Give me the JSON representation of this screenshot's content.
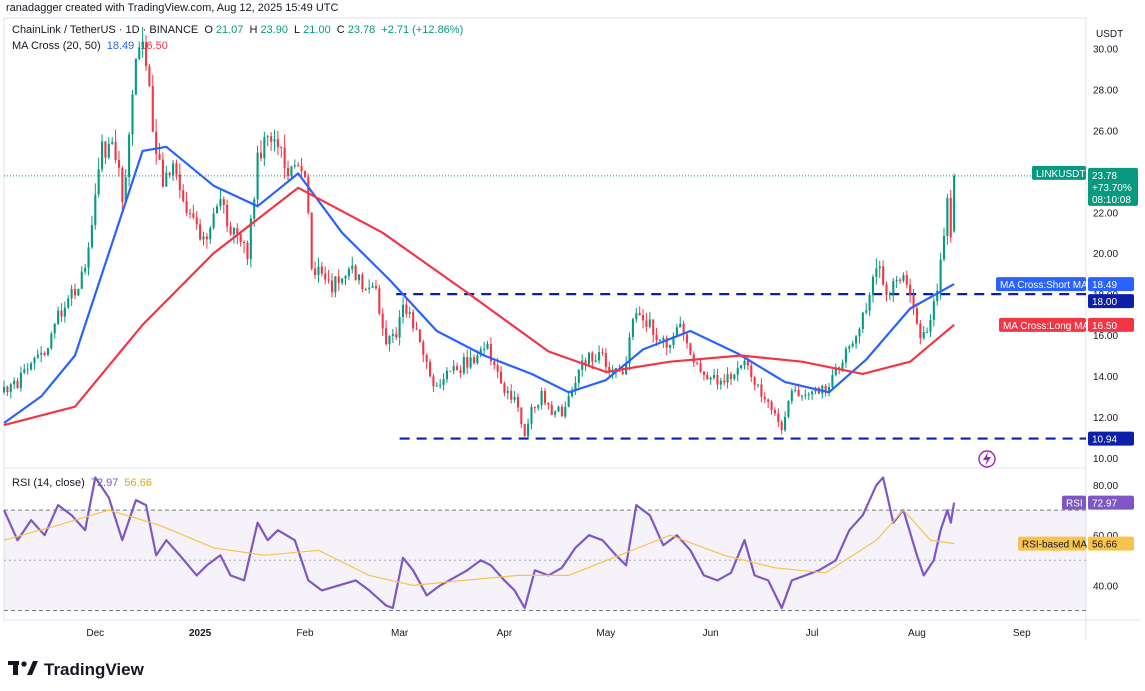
{
  "header": {
    "byline": "ranadagger created with TradingView.com, Aug 12, 2025 15:49 UTC",
    "symbol": "ChainLink / TetherUS · 1D · BINANCE",
    "ohlc": {
      "o_label": "O",
      "o": "21.07",
      "h_label": "H",
      "h": "23.90",
      "l_label": "L",
      "l": "21.00",
      "c_label": "C",
      "c": "23.78",
      "change": "+2.71 (+12.86%)"
    },
    "ma_legend": {
      "label": "MA Cross (20, 50)",
      "short": "18.49",
      "long": "16.50"
    },
    "rsi_legend": {
      "label": "RSI (14, close)",
      "rsi": "72.97",
      "rsi_ma": "56.66"
    }
  },
  "price_axis": {
    "currency": "USDT"
  },
  "tags": {
    "symbol_label": "LINKUSDT",
    "price": "23.78",
    "pct": "+73.70%",
    "countdown": "08:10:08",
    "short_ma_label": "MA Cross:Short MA",
    "short_ma_value": "18.49",
    "long_ma_label": "MA Cross:Long MA",
    "long_ma_value": "16.50",
    "level_high": "18.00",
    "level_low": "10.94",
    "rsi_label": "RSI",
    "rsi_value": "72.97",
    "rsi_ma_label": "RSI-based MA",
    "rsi_ma_value": "56.66"
  },
  "footer": {
    "brand": "TradingView"
  },
  "colors": {
    "up": "#089981",
    "down": "#f23645",
    "short_ma": "#2962ff",
    "long_ma": "#f23645",
    "level_line": "#0c1fa6",
    "rsi_line": "#7e57c2",
    "rsi_ma": "#f7c34c",
    "rsi_band": "#7e57c2"
  },
  "chart_data": [
    {
      "type": "candlestick",
      "title": "ChainLink / TetherUS · 1D · BINANCE",
      "ylabel": "USDT",
      "ylim": [
        9.6,
        31.4
      ],
      "y_ticks": [
        10,
        12,
        14,
        16,
        18,
        20,
        22,
        24,
        26,
        28,
        30
      ],
      "x_ticks": [
        "Dec",
        "2025",
        "Feb",
        "Mar",
        "Apr",
        "May",
        "Jun",
        "Jul",
        "Aug",
        "Sep"
      ],
      "x_tick_dates": [
        "2024-12-01",
        "2025-01-01",
        "2025-02-01",
        "2025-03-01",
        "2025-04-01",
        "2025-05-01",
        "2025-06-01",
        "2025-07-01",
        "2025-08-01",
        "2025-09-01"
      ],
      "x_range": [
        "2024-11-04",
        "2025-09-20"
      ],
      "close_anchors": [
        [
          "2024-11-04",
          13.2
        ],
        [
          "2024-11-08",
          13.6
        ],
        [
          "2024-11-12",
          14.8
        ],
        [
          "2024-11-16",
          15.2
        ],
        [
          "2024-11-20",
          16.9
        ],
        [
          "2024-11-24",
          18.0
        ],
        [
          "2024-11-28",
          19.0
        ],
        [
          "2024-12-01",
          23.3
        ],
        [
          "2024-12-03",
          25.0
        ],
        [
          "2024-12-06",
          25.3
        ],
        [
          "2024-12-09",
          23.0
        ],
        [
          "2024-12-10",
          24.0
        ],
        [
          "2024-12-13",
          29.0
        ],
        [
          "2024-12-15",
          30.0
        ],
        [
          "2024-12-16",
          29.2
        ],
        [
          "2024-12-18",
          26.0
        ],
        [
          "2024-12-21",
          23.5
        ],
        [
          "2024-12-24",
          24.5
        ],
        [
          "2024-12-27",
          22.5
        ],
        [
          "2024-12-31",
          21.0
        ],
        [
          "2025-01-02",
          20.5
        ],
        [
          "2025-01-05",
          22.0
        ],
        [
          "2025-01-07",
          22.7
        ],
        [
          "2025-01-09",
          21.5
        ],
        [
          "2025-01-12",
          20.8
        ],
        [
          "2025-01-15",
          20.0
        ],
        [
          "2025-01-18",
          24.5
        ],
        [
          "2025-01-21",
          25.5
        ],
        [
          "2025-01-24",
          25.0
        ],
        [
          "2025-01-27",
          24.3
        ],
        [
          "2025-01-29",
          24.0
        ],
        [
          "2025-02-01",
          23.5
        ],
        [
          "2025-02-03",
          19.5
        ],
        [
          "2025-02-06",
          19.0
        ],
        [
          "2025-02-09",
          18.5
        ],
        [
          "2025-02-12",
          18.8
        ],
        [
          "2025-02-15",
          19.0
        ],
        [
          "2025-02-19",
          18.2
        ],
        [
          "2025-02-22",
          18.0
        ],
        [
          "2025-02-25",
          15.5
        ],
        [
          "2025-02-28",
          15.8
        ],
        [
          "2025-03-02",
          17.5
        ],
        [
          "2025-03-05",
          16.5
        ],
        [
          "2025-03-08",
          15.0
        ],
        [
          "2025-03-11",
          13.5
        ],
        [
          "2025-03-14",
          14.0
        ],
        [
          "2025-03-17",
          14.2
        ],
        [
          "2025-03-20",
          14.6
        ],
        [
          "2025-03-24",
          15.0
        ],
        [
          "2025-03-27",
          15.5
        ],
        [
          "2025-03-30",
          14.0
        ],
        [
          "2025-04-02",
          13.0
        ],
        [
          "2025-04-04",
          12.8
        ],
        [
          "2025-04-07",
          11.2
        ],
        [
          "2025-04-09",
          12.5
        ],
        [
          "2025-04-12",
          13.0
        ],
        [
          "2025-04-15",
          12.3
        ],
        [
          "2025-04-18",
          12.2
        ],
        [
          "2025-04-21",
          13.3
        ],
        [
          "2025-04-24",
          14.6
        ],
        [
          "2025-04-27",
          15.0
        ],
        [
          "2025-04-30",
          14.8
        ],
        [
          "2025-05-03",
          14.2
        ],
        [
          "2025-05-06",
          14.0
        ],
        [
          "2025-05-09",
          16.5
        ],
        [
          "2025-05-11",
          17.3
        ],
        [
          "2025-05-14",
          16.5
        ],
        [
          "2025-05-17",
          15.5
        ],
        [
          "2025-05-20",
          15.8
        ],
        [
          "2025-05-23",
          16.2
        ],
        [
          "2025-05-26",
          15.3
        ],
        [
          "2025-05-30",
          14.0
        ],
        [
          "2025-06-02",
          13.9
        ],
        [
          "2025-06-05",
          13.6
        ],
        [
          "2025-06-08",
          14.2
        ],
        [
          "2025-06-11",
          15.0
        ],
        [
          "2025-06-14",
          13.5
        ],
        [
          "2025-06-18",
          13.0
        ],
        [
          "2025-06-22",
          11.4
        ],
        [
          "2025-06-24",
          13.0
        ],
        [
          "2025-06-27",
          13.2
        ],
        [
          "2025-07-01",
          13.1
        ],
        [
          "2025-07-05",
          13.3
        ],
        [
          "2025-07-09",
          14.5
        ],
        [
          "2025-07-12",
          15.5
        ],
        [
          "2025-07-15",
          16.5
        ],
        [
          "2025-07-18",
          18.0
        ],
        [
          "2025-07-21",
          19.5
        ],
        [
          "2025-07-23",
          18.2
        ],
        [
          "2025-07-26",
          18.5
        ],
        [
          "2025-07-28",
          19.0
        ],
        [
          "2025-07-31",
          17.0
        ],
        [
          "2025-08-02",
          16.0
        ],
        [
          "2025-08-04",
          16.5
        ],
        [
          "2025-08-06",
          17.5
        ],
        [
          "2025-08-08",
          19.5
        ],
        [
          "2025-08-10",
          22.5
        ],
        [
          "2025-08-11",
          21.07
        ],
        [
          "2025-08-12",
          23.78
        ]
      ],
      "last_bar": {
        "date": "2025-08-12",
        "open": 21.07,
        "high": 23.9,
        "low": 21.0,
        "close": 23.78
      },
      "series": [
        {
          "name": "MA Cross:Short MA",
          "period": 20,
          "values": [
            [
              "2024-11-04",
              11.7
            ],
            [
              "2024-11-15",
              13.0
            ],
            [
              "2024-11-25",
              15.0
            ],
            [
              "2024-12-05",
              20.0
            ],
            [
              "2024-12-15",
              25.0
            ],
            [
              "2024-12-22",
              25.2
            ],
            [
              "2025-01-05",
              23.3
            ],
            [
              "2025-01-18",
              22.3
            ],
            [
              "2025-01-30",
              23.9
            ],
            [
              "2025-02-12",
              21.0
            ],
            [
              "2025-02-26",
              18.7
            ],
            [
              "2025-03-12",
              16.2
            ],
            [
              "2025-03-26",
              15.0
            ],
            [
              "2025-04-09",
              14.1
            ],
            [
              "2025-04-20",
              13.2
            ],
            [
              "2025-05-01",
              13.8
            ],
            [
              "2025-05-12",
              15.3
            ],
            [
              "2025-05-26",
              16.2
            ],
            [
              "2025-06-09",
              15.1
            ],
            [
              "2025-06-23",
              13.7
            ],
            [
              "2025-07-06",
              13.2
            ],
            [
              "2025-07-17",
              14.8
            ],
            [
              "2025-07-30",
              17.3
            ],
            [
              "2025-08-12",
              18.49
            ]
          ]
        },
        {
          "name": "MA Cross:Long MA",
          "period": 50,
          "values": [
            [
              "2024-11-04",
              11.6
            ],
            [
              "2024-11-25",
              12.5
            ],
            [
              "2024-12-15",
              16.5
            ],
            [
              "2025-01-05",
              20.0
            ],
            [
              "2025-01-30",
              23.2
            ],
            [
              "2025-02-24",
              21.0
            ],
            [
              "2025-03-20",
              18.2
            ],
            [
              "2025-04-14",
              15.2
            ],
            [
              "2025-05-01",
              14.2
            ],
            [
              "2025-05-20",
              14.7
            ],
            [
              "2025-06-10",
              15.0
            ],
            [
              "2025-06-28",
              14.7
            ],
            [
              "2025-07-16",
              14.1
            ],
            [
              "2025-07-30",
              14.7
            ],
            [
              "2025-08-12",
              16.5
            ]
          ]
        }
      ],
      "horizontal_levels": [
        {
          "value": 18.0,
          "from": "2025-02-28",
          "style": "dashed"
        },
        {
          "value": 10.94,
          "from": "2025-03-01",
          "style": "dashed"
        }
      ],
      "last_price": 23.78,
      "last_change": "+73.70%"
    },
    {
      "type": "line",
      "title": "RSI (14, close)",
      "ylim": [
        27,
        86
      ],
      "y_ticks": [
        40,
        60,
        80
      ],
      "band": [
        30,
        70
      ],
      "midline": 50,
      "x_range": [
        "2024-11-04",
        "2025-09-20"
      ],
      "series": [
        {
          "name": "RSI",
          "values": [
            [
              "2024-11-04",
              70
            ],
            [
              "2024-11-08",
              58
            ],
            [
              "2024-11-12",
              66
            ],
            [
              "2024-11-16",
              60
            ],
            [
              "2024-11-20",
              72
            ],
            [
              "2024-11-24",
              68
            ],
            [
              "2024-11-28",
              62
            ],
            [
              "2024-12-01",
              83
            ],
            [
              "2024-12-05",
              75
            ],
            [
              "2024-12-09",
              58
            ],
            [
              "2024-12-13",
              74
            ],
            [
              "2024-12-16",
              72
            ],
            [
              "2024-12-19",
              52
            ],
            [
              "2024-12-22",
              58
            ],
            [
              "2024-12-26",
              52
            ],
            [
              "2024-12-31",
              44
            ],
            [
              "2025-01-03",
              48
            ],
            [
              "2025-01-07",
              52
            ],
            [
              "2025-01-10",
              44
            ],
            [
              "2025-01-14",
              42
            ],
            [
              "2025-01-18",
              65
            ],
            [
              "2025-01-21",
              58
            ],
            [
              "2025-01-24",
              62
            ],
            [
              "2025-01-29",
              58
            ],
            [
              "2025-02-02",
              42
            ],
            [
              "2025-02-06",
              38
            ],
            [
              "2025-02-11",
              40
            ],
            [
              "2025-02-16",
              42
            ],
            [
              "2025-02-20",
              38
            ],
            [
              "2025-02-25",
              32
            ],
            [
              "2025-02-27",
              31
            ],
            [
              "2025-03-02",
              51
            ],
            [
              "2025-03-05",
              46
            ],
            [
              "2025-03-09",
              36
            ],
            [
              "2025-03-13",
              40
            ],
            [
              "2025-03-17",
              43
            ],
            [
              "2025-03-21",
              46
            ],
            [
              "2025-03-25",
              50
            ],
            [
              "2025-03-28",
              48
            ],
            [
              "2025-04-01",
              42
            ],
            [
              "2025-04-04",
              38
            ],
            [
              "2025-04-07",
              31
            ],
            [
              "2025-04-10",
              46
            ],
            [
              "2025-04-14",
              44
            ],
            [
              "2025-04-18",
              47
            ],
            [
              "2025-04-22",
              55
            ],
            [
              "2025-04-26",
              60
            ],
            [
              "2025-04-30",
              58
            ],
            [
              "2025-05-04",
              52
            ],
            [
              "2025-05-07",
              48
            ],
            [
              "2025-05-10",
              72
            ],
            [
              "2025-05-14",
              68
            ],
            [
              "2025-05-18",
              56
            ],
            [
              "2025-05-22",
              60
            ],
            [
              "2025-05-26",
              54
            ],
            [
              "2025-05-30",
              44
            ],
            [
              "2025-06-03",
              42
            ],
            [
              "2025-06-07",
              45
            ],
            [
              "2025-06-11",
              58
            ],
            [
              "2025-06-14",
              44
            ],
            [
              "2025-06-18",
              42
            ],
            [
              "2025-06-22",
              31
            ],
            [
              "2025-06-25",
              42
            ],
            [
              "2025-06-29",
              44
            ],
            [
              "2025-07-03",
              46
            ],
            [
              "2025-07-08",
              50
            ],
            [
              "2025-07-12",
              62
            ],
            [
              "2025-07-16",
              68
            ],
            [
              "2025-07-20",
              80
            ],
            [
              "2025-07-22",
              83
            ],
            [
              "2025-07-25",
              65
            ],
            [
              "2025-07-28",
              70
            ],
            [
              "2025-08-01",
              52
            ],
            [
              "2025-08-03",
              44
            ],
            [
              "2025-08-06",
              50
            ],
            [
              "2025-08-08",
              62
            ],
            [
              "2025-08-10",
              70
            ],
            [
              "2025-08-11",
              65
            ],
            [
              "2025-08-12",
              72.97
            ]
          ]
        },
        {
          "name": "RSI-based MA",
          "values": [
            [
              "2024-11-04",
              58
            ],
            [
              "2024-11-20",
              64
            ],
            [
              "2024-12-05",
              70
            ],
            [
              "2024-12-20",
              64
            ],
            [
              "2025-01-05",
              55
            ],
            [
              "2025-01-20",
              52
            ],
            [
              "2025-02-05",
              54
            ],
            [
              "2025-02-20",
              44
            ],
            [
              "2025-03-05",
              40
            ],
            [
              "2025-03-20",
              42
            ],
            [
              "2025-04-05",
              44
            ],
            [
              "2025-04-20",
              44
            ],
            [
              "2025-05-05",
              52
            ],
            [
              "2025-05-20",
              60
            ],
            [
              "2025-06-05",
              52
            ],
            [
              "2025-06-20",
              47
            ],
            [
              "2025-07-05",
              45
            ],
            [
              "2025-07-20",
              58
            ],
            [
              "2025-07-28",
              70
            ],
            [
              "2025-08-05",
              58
            ],
            [
              "2025-08-12",
              56.66
            ]
          ]
        }
      ]
    }
  ]
}
